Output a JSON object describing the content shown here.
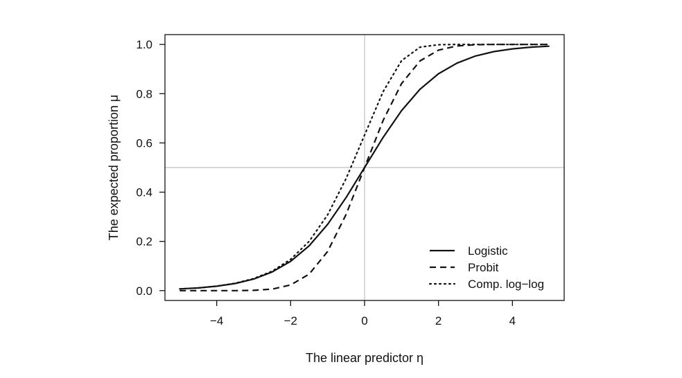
{
  "chart_data": {
    "type": "line",
    "title": "",
    "xlabel": "The linear predictor η",
    "ylabel": "The expected proportion μ",
    "xlim": [
      -5.4,
      5.4
    ],
    "ylim": [
      -0.04,
      1.04
    ],
    "xticks": [
      -4,
      -2,
      0,
      2,
      4
    ],
    "xtick_labels": [
      "−4",
      "−2",
      "0",
      "2",
      "4"
    ],
    "yticks": [
      0.0,
      0.2,
      0.4,
      0.6,
      0.8,
      1.0
    ],
    "ytick_labels": [
      "0.0",
      "0.2",
      "0.4",
      "0.6",
      "0.8",
      "1.0"
    ],
    "reference_lines": {
      "x": 0,
      "y": 0.5,
      "color": "#c0c0c0"
    },
    "grid": false,
    "legend": {
      "position": "bottom-right"
    },
    "series": [
      {
        "name": "Logistic",
        "style": "solid",
        "color": "#111111",
        "x": [
          -5,
          -4.5,
          -4,
          -3.5,
          -3,
          -2.5,
          -2,
          -1.5,
          -1,
          -0.5,
          0,
          0.5,
          1,
          1.5,
          2,
          2.5,
          3,
          3.5,
          4,
          4.5,
          5
        ],
        "y": [
          0.007,
          0.011,
          0.018,
          0.029,
          0.047,
          0.076,
          0.119,
          0.182,
          0.269,
          0.378,
          0.5,
          0.622,
          0.731,
          0.818,
          0.881,
          0.924,
          0.953,
          0.971,
          0.982,
          0.989,
          0.993
        ]
      },
      {
        "name": "Probit",
        "style": "dashed",
        "color": "#111111",
        "x": [
          -5,
          -4.5,
          -4,
          -3.5,
          -3,
          -2.5,
          -2,
          -1.5,
          -1,
          -0.5,
          0,
          0.5,
          1,
          1.5,
          2,
          2.5,
          3,
          3.5,
          4,
          4.5,
          5
        ],
        "y": [
          0.0,
          0.0,
          0.0,
          0.0,
          0.001,
          0.006,
          0.023,
          0.067,
          0.159,
          0.309,
          0.5,
          0.691,
          0.841,
          0.933,
          0.977,
          0.994,
          0.999,
          1.0,
          1.0,
          1.0,
          1.0
        ]
      },
      {
        "name": "Comp. log−log",
        "style": "dotted",
        "color": "#111111",
        "x": [
          -5,
          -4.5,
          -4,
          -3.5,
          -3,
          -2.5,
          -2,
          -1.5,
          -1,
          -0.5,
          0,
          0.5,
          1,
          1.5,
          2,
          2.5,
          3,
          3.5,
          4,
          4.5,
          5
        ],
        "y": [
          0.007,
          0.011,
          0.018,
          0.03,
          0.049,
          0.079,
          0.127,
          0.2,
          0.308,
          0.455,
          0.632,
          0.808,
          0.934,
          0.989,
          0.999,
          1.0,
          1.0,
          1.0,
          1.0,
          1.0,
          1.0
        ]
      }
    ]
  }
}
